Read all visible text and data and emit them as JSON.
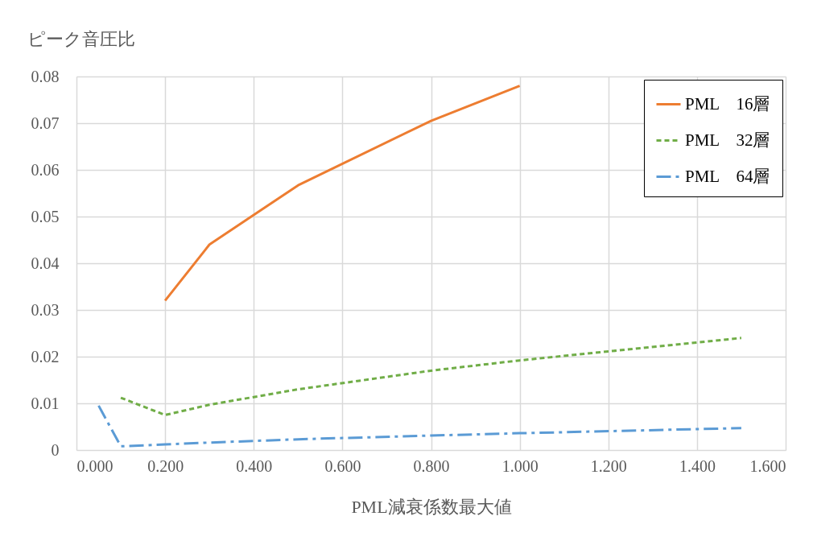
{
  "chart_data": {
    "type": "line",
    "xlabel": "PML減衰係数最大値",
    "ylabel": "ピーク音圧比",
    "xlim": [
      0,
      1.6
    ],
    "ylim": [
      0,
      0.08
    ],
    "xticks": [
      {
        "value": 0,
        "label": "0.000"
      },
      {
        "value": 0.2,
        "label": "0.200"
      },
      {
        "value": 0.4,
        "label": "0.400"
      },
      {
        "value": 0.6,
        "label": "0.600"
      },
      {
        "value": 0.8,
        "label": "0.800"
      },
      {
        "value": 1,
        "label": "1.000"
      },
      {
        "value": 1.2,
        "label": "1.200"
      },
      {
        "value": 1.4,
        "label": "1.400"
      },
      {
        "value": 1.6,
        "label": "1.600"
      }
    ],
    "yticks": [
      0,
      0.01,
      0.02,
      0.03,
      0.04,
      0.05,
      0.06,
      0.07,
      0.08
    ],
    "grid": true,
    "legend": "top right",
    "marker": "none",
    "series": [
      {
        "name": "PML　16層",
        "color": "#ed7d31",
        "line_style": "solid",
        "x": [
          0.2,
          0.3,
          0.5,
          0.8,
          1.0
        ],
        "values": [
          0.032,
          0.044,
          0.0567,
          0.0705,
          0.078
        ]
      },
      {
        "name": "PML　32層",
        "color": "#70ad47",
        "line_style": "dashed",
        "x": [
          0.1,
          0.2,
          0.3,
          0.5,
          0.8,
          1.0,
          1.5
        ],
        "values": [
          0.0112,
          0.0075,
          0.0097,
          0.013,
          0.017,
          0.0192,
          0.024
        ]
      },
      {
        "name": "PML　64層",
        "color": "#5b9bd5",
        "line_style": "dashdot",
        "x": [
          0.05,
          0.1,
          0.2,
          0.3,
          0.5,
          0.8,
          1.0,
          1.5
        ],
        "values": [
          0.0095,
          0.0008,
          0.0012,
          0.0016,
          0.0023,
          0.0031,
          0.0036,
          0.0047
        ]
      }
    ]
  }
}
